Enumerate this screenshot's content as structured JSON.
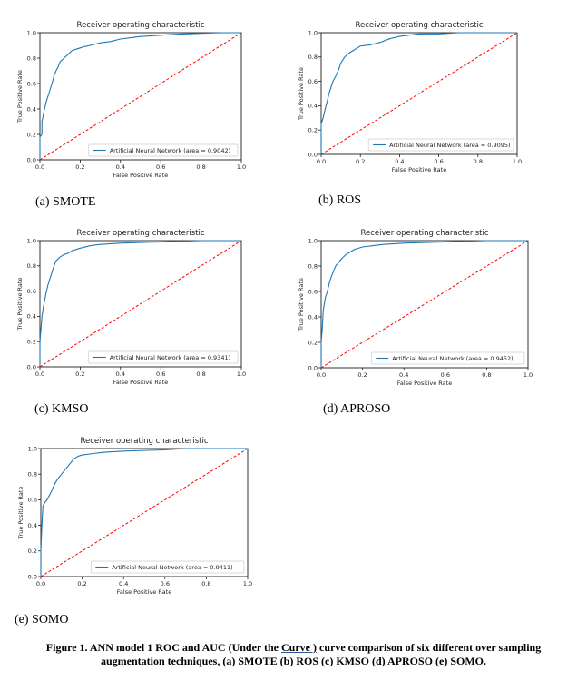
{
  "chart_data": [
    {
      "type": "line",
      "id": "a",
      "title": "Receiver operating characteristic",
      "xlabel": "False Positive Rate",
      "ylabel": "True Positive Rate",
      "xlim": [
        0,
        1
      ],
      "ylim": [
        0,
        1
      ],
      "xticks": [
        "0.0",
        "0.2",
        "0.4",
        "0.6",
        "0.8",
        "1.0"
      ],
      "yticks": [
        "0.0",
        "0.2",
        "0.4",
        "0.6",
        "0.8",
        "1.0"
      ],
      "legend": "Artificial Neural Network (area = 0.9042)",
      "legend_loc": "lower-right",
      "series": [
        {
          "name": "Artificial Neural Network (area = 0.9042)",
          "color": "#1f77b4",
          "x": [
            0,
            0,
            0.01,
            0.01,
            0.02,
            0.03,
            0.04,
            0.05,
            0.06,
            0.07,
            0.08,
            0.09,
            0.1,
            0.12,
            0.14,
            0.16,
            0.18,
            0.2,
            0.22,
            0.25,
            0.3,
            0.35,
            0.4,
            0.45,
            0.5,
            0.6,
            0.7,
            0.8,
            0.9,
            1.0
          ],
          "y": [
            0,
            0.18,
            0.2,
            0.3,
            0.38,
            0.45,
            0.5,
            0.55,
            0.6,
            0.66,
            0.7,
            0.73,
            0.77,
            0.8,
            0.83,
            0.86,
            0.87,
            0.88,
            0.89,
            0.9,
            0.92,
            0.93,
            0.95,
            0.96,
            0.97,
            0.98,
            0.99,
            0.995,
            1.0,
            1.0
          ]
        },
        {
          "name": "chance",
          "color": "#ff0000",
          "dashed": true,
          "x": [
            0,
            1
          ],
          "y": [
            0,
            1
          ]
        }
      ]
    },
    {
      "type": "line",
      "id": "b",
      "title": "Receiver operating characteristic",
      "xlabel": "False Positive Rate",
      "ylabel": "True Positive Rate",
      "xlim": [
        0,
        1
      ],
      "ylim": [
        0,
        1
      ],
      "xticks": [
        "0.0",
        "0.2",
        "0.4",
        "0.6",
        "0.8",
        "1.0"
      ],
      "yticks": [
        "0.0",
        "0.2",
        "0.4",
        "0.6",
        "0.8",
        "1.0"
      ],
      "legend": "Artificial Neural Network (area = 0.9095)",
      "legend_loc": "lower-right",
      "series": [
        {
          "name": "Artificial Neural Network (area = 0.9095)",
          "color": "#1f77b4",
          "x": [
            0,
            0,
            0.01,
            0.02,
            0.03,
            0.04,
            0.05,
            0.06,
            0.07,
            0.08,
            0.09,
            0.1,
            0.12,
            0.14,
            0.16,
            0.18,
            0.2,
            0.25,
            0.3,
            0.35,
            0.4,
            0.45,
            0.5,
            0.6,
            0.7,
            0.8,
            1.0
          ],
          "y": [
            0,
            0.25,
            0.3,
            0.37,
            0.43,
            0.5,
            0.55,
            0.6,
            0.63,
            0.66,
            0.7,
            0.75,
            0.8,
            0.83,
            0.85,
            0.87,
            0.89,
            0.9,
            0.92,
            0.95,
            0.97,
            0.98,
            0.99,
            0.99,
            1.0,
            1.0,
            1.0
          ]
        },
        {
          "name": "chance",
          "color": "#ff0000",
          "dashed": true,
          "x": [
            0,
            1
          ],
          "y": [
            0,
            1
          ]
        }
      ]
    },
    {
      "type": "line",
      "id": "c",
      "title": "Receiver operating characteristic",
      "xlabel": "False Positive Rate",
      "ylabel": "True Positive Rate",
      "xlim": [
        0,
        1
      ],
      "ylim": [
        0,
        1
      ],
      "xticks": [
        "0.0",
        "0.2",
        "0.4",
        "0.6",
        "0.8",
        "1.0"
      ],
      "yticks": [
        "0.0",
        "0.2",
        "0.4",
        "0.6",
        "0.8",
        "1.0"
      ],
      "legend": "Artificial Neural Network (area = 0.9341)",
      "legend_loc": "lower-right",
      "series": [
        {
          "name": "Artificial Neural Network (area = 0.9341)",
          "color": "#1f77b4",
          "x": [
            0,
            0,
            0.005,
            0.01,
            0.02,
            0.03,
            0.04,
            0.05,
            0.06,
            0.07,
            0.08,
            0.1,
            0.12,
            0.14,
            0.16,
            0.2,
            0.25,
            0.3,
            0.4,
            0.5,
            0.6,
            0.7,
            0.8,
            0.9,
            1.0
          ],
          "y": [
            0,
            0.2,
            0.3,
            0.4,
            0.5,
            0.58,
            0.65,
            0.7,
            0.75,
            0.8,
            0.84,
            0.87,
            0.89,
            0.9,
            0.92,
            0.94,
            0.96,
            0.97,
            0.98,
            0.985,
            0.99,
            0.995,
            1.0,
            1.0,
            1.0
          ]
        },
        {
          "name": "chance",
          "color": "#ff0000",
          "dashed": true,
          "x": [
            0,
            1
          ],
          "y": [
            0,
            1
          ]
        }
      ]
    },
    {
      "type": "line",
      "id": "d",
      "title": "Receiver operating characteristic",
      "xlabel": "False Positive Rate",
      "ylabel": "True Positive Rate",
      "xlim": [
        0,
        1
      ],
      "ylim": [
        0,
        1
      ],
      "xticks": [
        "0.0",
        "0.2",
        "0.4",
        "0.6",
        "0.8",
        "1.0"
      ],
      "yticks": [
        "0.0",
        "0.2",
        "0.4",
        "0.6",
        "0.8",
        "1.0"
      ],
      "legend": "Artificial Neural Network (area = 0.9452)",
      "legend_loc": "lower-right",
      "series": [
        {
          "name": "Artificial Neural Network (area = 0.9452)",
          "color": "#1f77b4",
          "x": [
            0,
            0,
            0.005,
            0.01,
            0.02,
            0.03,
            0.04,
            0.05,
            0.06,
            0.07,
            0.08,
            0.1,
            0.12,
            0.14,
            0.16,
            0.18,
            0.2,
            0.25,
            0.3,
            0.4,
            0.5,
            0.6,
            0.7,
            0.8,
            0.9,
            1.0
          ],
          "y": [
            0,
            0.2,
            0.3,
            0.45,
            0.55,
            0.6,
            0.67,
            0.72,
            0.76,
            0.8,
            0.82,
            0.86,
            0.89,
            0.91,
            0.93,
            0.94,
            0.95,
            0.96,
            0.97,
            0.98,
            0.985,
            0.99,
            0.995,
            1.0,
            1.0,
            1.0
          ]
        },
        {
          "name": "chance",
          "color": "#ff0000",
          "dashed": true,
          "x": [
            0,
            1
          ],
          "y": [
            0,
            1
          ]
        }
      ]
    },
    {
      "type": "line",
      "id": "e",
      "title": "Receiver operating characteristic",
      "xlabel": "False Positive Rate",
      "ylabel": "True Positive Rate",
      "xlim": [
        0,
        1
      ],
      "ylim": [
        0,
        1
      ],
      "xticks": [
        "0.0",
        "0.2",
        "0.4",
        "0.6",
        "0.8",
        "1.0"
      ],
      "yticks": [
        "0.0",
        "0.2",
        "0.4",
        "0.6",
        "0.8",
        "1.0"
      ],
      "legend": "Artificial Neural Network (area = 0.9411)",
      "legend_loc": "lower-right",
      "series": [
        {
          "name": "Artificial Neural Network (area = 0.9411)",
          "color": "#1f77b4",
          "x": [
            0,
            0,
            0.005,
            0.01,
            0.02,
            0.03,
            0.04,
            0.05,
            0.06,
            0.07,
            0.08,
            0.1,
            0.12,
            0.14,
            0.16,
            0.18,
            0.2,
            0.25,
            0.3,
            0.4,
            0.5,
            0.6,
            0.7,
            0.8,
            1.0
          ],
          "y": [
            0,
            0.2,
            0.4,
            0.55,
            0.58,
            0.6,
            0.63,
            0.66,
            0.7,
            0.73,
            0.76,
            0.8,
            0.84,
            0.88,
            0.92,
            0.94,
            0.95,
            0.96,
            0.97,
            0.98,
            0.985,
            0.99,
            1.0,
            1.0,
            1.0
          ]
        },
        {
          "name": "chance",
          "color": "#ff0000",
          "dashed": true,
          "x": [
            0,
            1
          ],
          "y": [
            0,
            1
          ]
        }
      ]
    }
  ],
  "captions": {
    "a": "(a)  SMOTE",
    "b": "(b) ROS",
    "c": "(c) KMSO",
    "d": "(d) APROSO",
    "e": "(e) SOMO"
  },
  "figure_caption": {
    "part1": "Figure 1. ANN model 1 ROC and AUC (Under the ",
    "underlined": "Curve )",
    "part2": " curve comparison of six different over sampling",
    "line2": "augmentation techniques, (a) SMOTE (b) ROS (c) KMSO (d) APROSO (e) SOMO."
  }
}
